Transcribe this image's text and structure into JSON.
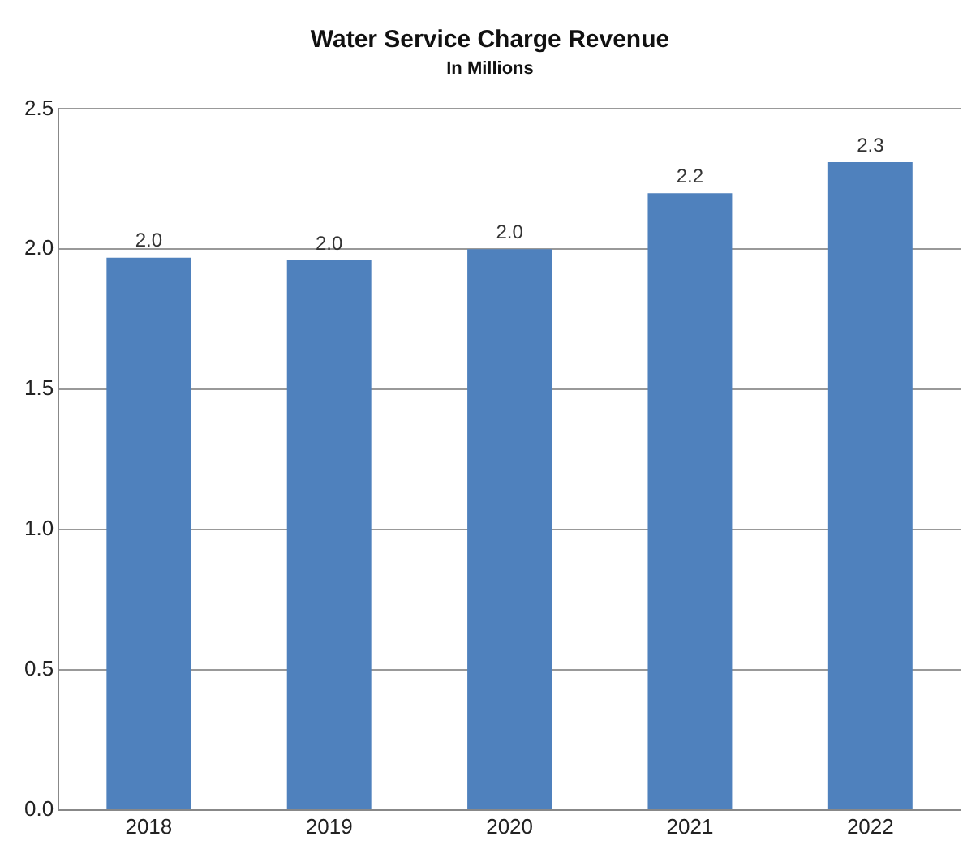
{
  "chart_data": {
    "type": "bar",
    "title": "Water Service Charge Revenue",
    "subtitle": "In Millions",
    "categories": [
      "2018",
      "2019",
      "2020",
      "2021",
      "2022"
    ],
    "values": [
      1.97,
      1.96,
      2.0,
      2.2,
      2.31
    ],
    "value_labels": [
      "2.0",
      "2.0",
      "2.0",
      "2.2",
      "2.3"
    ],
    "color": "#4f81bd",
    "ylim": [
      0,
      2.5
    ],
    "yticks": [
      {
        "value": 0,
        "label": "0.0"
      },
      {
        "value": 0.5,
        "label": "0.5"
      },
      {
        "value": 1,
        "label": "1.0"
      },
      {
        "value": 1.5,
        "label": "1.5"
      },
      {
        "value": 2,
        "label": "2.0"
      },
      {
        "value": 2.5,
        "label": "2.5"
      }
    ],
    "grid": "y",
    "legend": false
  }
}
